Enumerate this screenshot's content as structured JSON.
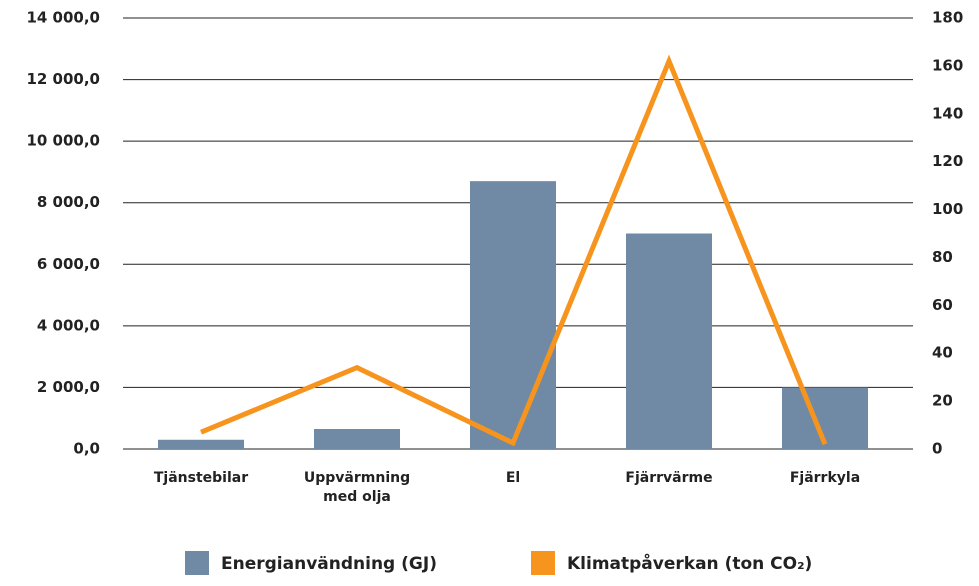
{
  "chart_data": {
    "type": "bar",
    "categories": [
      "Tjänstebilar",
      "Uppvärmning med olja",
      "El",
      "Fjärrvärme",
      "Fjärrkyla"
    ],
    "series": [
      {
        "name": "Energianvändning (GJ)",
        "color": "#7089a5",
        "type": "bar",
        "values": [
          300,
          650,
          8700,
          7000,
          2000
        ]
      },
      {
        "name": "Klimatpåverkan (ton CO₂)",
        "color": "#f7941d",
        "type": "line",
        "axis": "y2",
        "values": [
          7,
          34,
          2.5,
          162,
          2
        ]
      }
    ],
    "ylim": [
      0,
      14000
    ],
    "yticks": [
      {
        "value": 0,
        "label": "0,0"
      },
      {
        "value": 2000,
        "label": "2 000,0"
      },
      {
        "value": 4000,
        "label": "4 000,0"
      },
      {
        "value": 6000,
        "label": "6 000,0"
      },
      {
        "value": 8000,
        "label": "8 000,0"
      },
      {
        "value": 10000,
        "label": "10 000,0"
      },
      {
        "value": 12000,
        "label": "12 000,0"
      },
      {
        "value": 14000,
        "label": "14 000,0"
      }
    ],
    "y2lim": [
      0,
      180
    ],
    "y2ticks": [
      0,
      20,
      40,
      60,
      80,
      100,
      120,
      140,
      160,
      180
    ],
    "grid": true,
    "legend": "bottom"
  }
}
